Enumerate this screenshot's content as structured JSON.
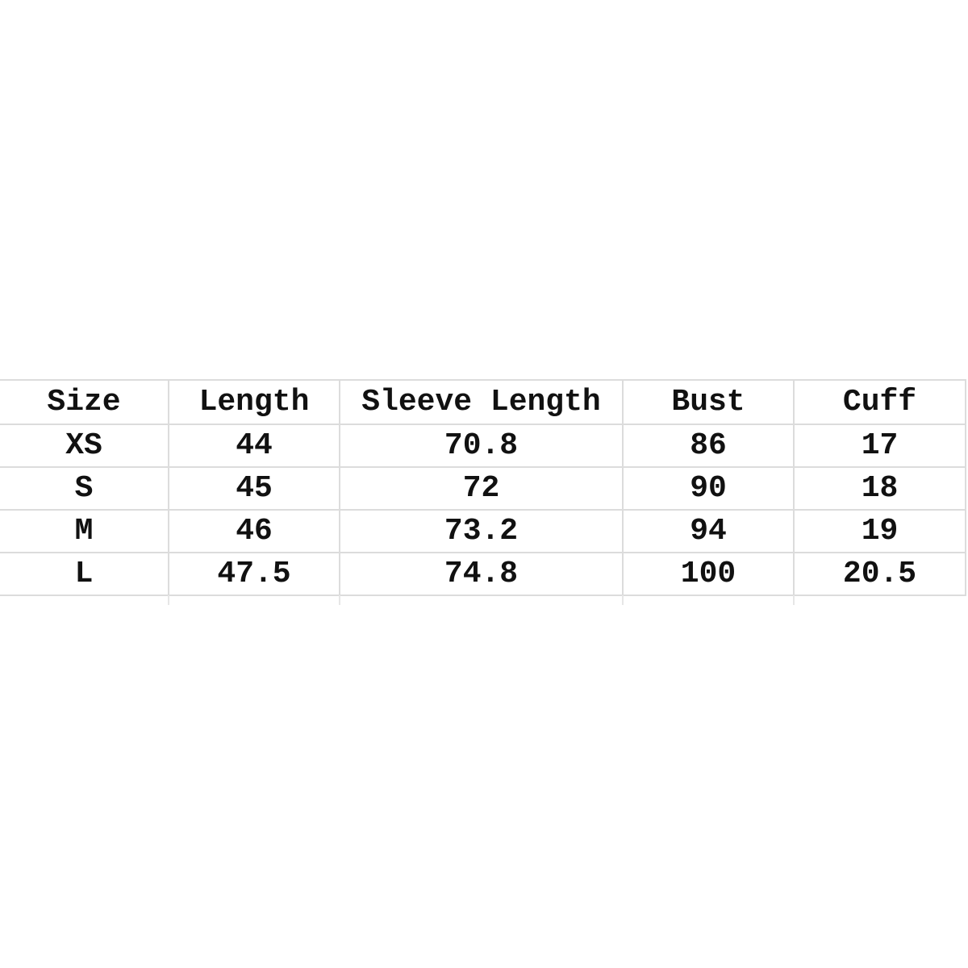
{
  "table": {
    "headers": [
      "Size",
      "Length",
      "Sleeve Length",
      "Bust",
      "Cuff"
    ],
    "rows": [
      [
        "XS",
        "44",
        "70.8",
        "86",
        "17"
      ],
      [
        "S",
        "45",
        "72",
        "90",
        "18"
      ],
      [
        "M",
        "46",
        "73.2",
        "94",
        "19"
      ],
      [
        "L",
        "47.5",
        "74.8",
        "100",
        "20.5"
      ]
    ]
  }
}
